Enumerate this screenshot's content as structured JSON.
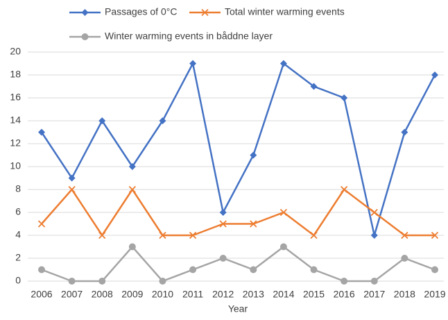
{
  "chart_data": {
    "type": "line",
    "x_label": "Year",
    "categories": [
      "2006",
      "2007",
      "2008",
      "2009",
      "2010",
      "2011",
      "2012",
      "2013",
      "2014",
      "2015",
      "2016",
      "2017",
      "2018",
      "2019"
    ],
    "series": [
      {
        "name": "Passages of 0°C",
        "color": "#4472c4",
        "marker": "diamond",
        "values": [
          13,
          9,
          14,
          10,
          14,
          19,
          6,
          11,
          19,
          17,
          16,
          4,
          13,
          18
        ]
      },
      {
        "name": "Total winter warming events",
        "color": "#ed7d31",
        "marker": "x",
        "values": [
          5,
          8,
          4,
          8,
          4,
          4,
          5,
          5,
          6,
          4,
          8,
          6,
          4,
          4
        ]
      },
      {
        "name": "Winter warming events in båddne layer",
        "color": "#a5a5a5",
        "marker": "circle",
        "values": [
          1,
          0,
          0,
          3,
          0,
          1,
          2,
          1,
          3,
          1,
          0,
          0,
          2,
          1
        ]
      }
    ],
    "ylim": [
      0,
      20
    ],
    "yticks": [
      0,
      2,
      4,
      6,
      8,
      10,
      12,
      14,
      16,
      18,
      20
    ],
    "grid": true,
    "legend": "top"
  }
}
